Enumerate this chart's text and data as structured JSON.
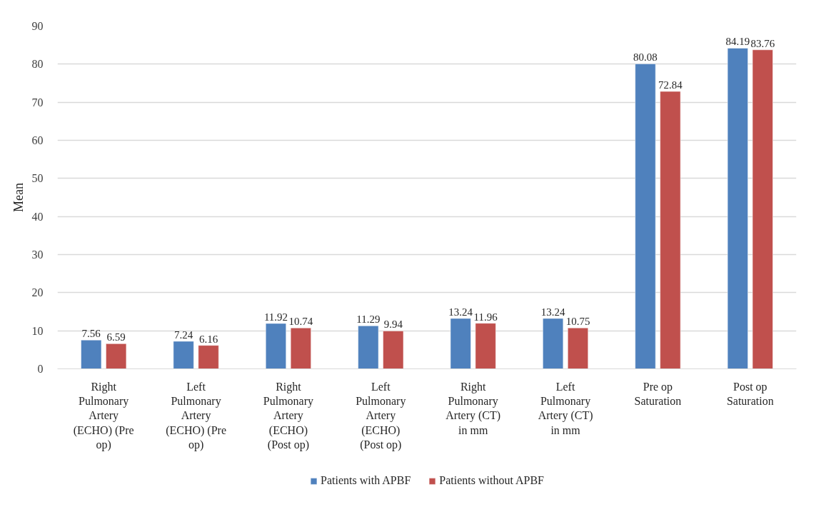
{
  "chart_data": {
    "type": "bar",
    "ylabel": "Mean",
    "categories": [
      "Right Pulmonary Artery (ECHO) (Pre op)",
      "Left Pulmonary Artery (ECHO) (Pre op)",
      "Right Pulmonary Artery (ECHO) (Post op)",
      "Left Pulmonary Artery (ECHO) (Post op)",
      "Right Pulmonary Artery (CT) in mm",
      "Left Pulmonary Artery (CT) in mm",
      "Pre op Saturation",
      "Post op Saturation"
    ],
    "series": [
      {
        "name": "Patients with APBF",
        "color": "#4f81bd",
        "values": [
          7.56,
          7.24,
          11.92,
          11.29,
          13.24,
          13.24,
          80.08,
          84.19
        ]
      },
      {
        "name": "Patients without APBF",
        "color": "#c0504d",
        "values": [
          6.59,
          6.16,
          10.74,
          9.94,
          11.96,
          10.75,
          72.84,
          83.76
        ]
      }
    ],
    "ylim": [
      0,
      90
    ],
    "yticks": [
      0,
      10,
      20,
      30,
      40,
      50,
      60,
      70,
      80,
      90
    ],
    "grid": "y",
    "legend": "bottom",
    "data_labels": true
  }
}
